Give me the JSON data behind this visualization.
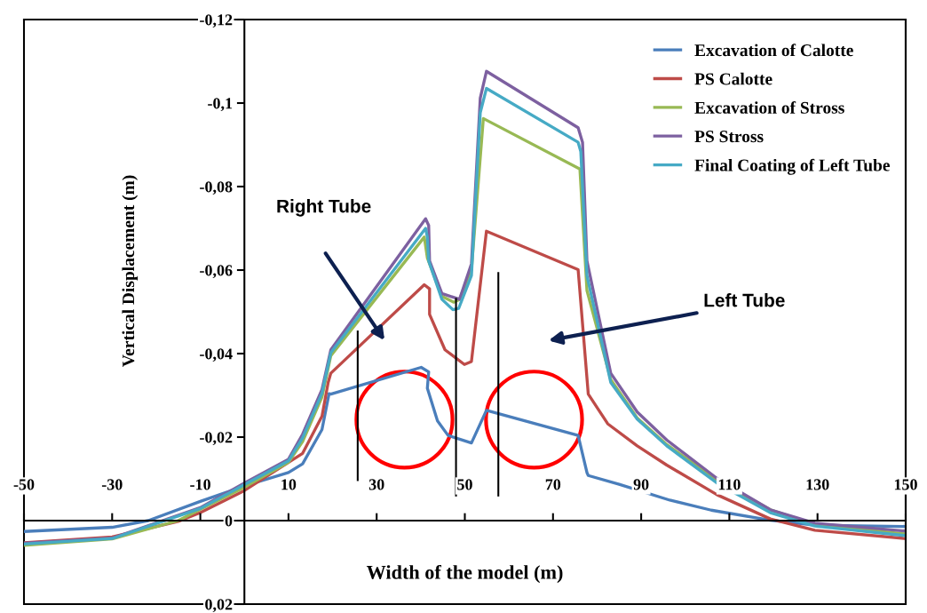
{
  "chart_data": {
    "type": "line",
    "xlabel": "Width of the model (m)",
    "ylabel": "Vertical Displacement (m)",
    "xlim": [
      -50,
      150
    ],
    "xticks": [
      -50,
      -30,
      -10,
      10,
      30,
      50,
      70,
      90,
      110,
      130,
      150
    ],
    "ylim": [
      0.02,
      -0.12
    ],
    "yticks": [
      {
        "value": -0.12,
        "label": "-0,12"
      },
      {
        "value": -0.1,
        "label": "-0,1"
      },
      {
        "value": -0.08,
        "label": "-0,08"
      },
      {
        "value": -0.06,
        "label": "-0,06"
      },
      {
        "value": -0.04,
        "label": "-0,04"
      },
      {
        "value": -0.02,
        "label": "-0,02"
      },
      {
        "value": 0,
        "label": "0"
      },
      {
        "value": 0.02,
        "label": "0,02"
      }
    ],
    "grid": false,
    "legend": "top right",
    "marker": "none",
    "line_style": "solid",
    "annotations": [
      "Right Tube",
      "Left Tube"
    ],
    "series": [
      {
        "name": "Excavation of Calotte",
        "color": "#4a7ebb",
        "x": [
          -50,
          -30,
          -21.8,
          -10,
          0,
          10,
          13.2,
          17.6,
          19.2,
          19.6,
          40.1,
          41.8,
          41.5,
          43.8,
          46.2,
          51.5,
          54.9,
          75.7,
          77.7,
          78.0,
          85.0,
          96.5,
          105.9,
          119.3,
          129.4,
          150
        ],
        "values": [
          0.0026,
          0.0016,
          0,
          -0.0046,
          -0.0083,
          -0.0115,
          -0.0136,
          -0.0218,
          -0.0304,
          -0.0303,
          -0.0367,
          -0.0356,
          -0.0317,
          -0.0239,
          -0.0204,
          -0.0186,
          -0.0264,
          -0.0204,
          -0.0115,
          -0.0108,
          -0.0087,
          -0.0049,
          -0.0025,
          -0.0001,
          0.0011,
          0.0014
        ]
      },
      {
        "name": "PS Calotte",
        "color": "#be4b48",
        "x": [
          -50,
          -30,
          -15,
          -10,
          0,
          13.2,
          17.6,
          19.0,
          19.6,
          40.8,
          42.0,
          42.0,
          45.5,
          49.9,
          51.5,
          54.9,
          75.7,
          78.0,
          82.4,
          89.1,
          95.8,
          107.2,
          119.3,
          129.4,
          150
        ],
        "values": [
          0.0053,
          0.0039,
          0.0002,
          -0.0019,
          -0.0072,
          -0.0161,
          -0.025,
          -0.0331,
          -0.0353,
          -0.0565,
          -0.0555,
          -0.0494,
          -0.0409,
          -0.0374,
          -0.0381,
          -0.0693,
          -0.0601,
          -0.0303,
          -0.0232,
          -0.0179,
          -0.0133,
          -0.0062,
          -0.0004,
          0.0023,
          0.0043
        ]
      },
      {
        "name": "Excavation of Stross",
        "color": "#98b954",
        "x": [
          -50,
          -30,
          -15,
          -10,
          0,
          10,
          13.2,
          17.6,
          19.6,
          40.8,
          41.5,
          44.8,
          47.5,
          48.8,
          51.5,
          54.2,
          76.1,
          77.7,
          83.1,
          89.1,
          95.8,
          107.2,
          119.3,
          129.4,
          150
        ],
        "values": [
          0.0059,
          0.0044,
          0,
          -0.0027,
          -0.008,
          -0.014,
          -0.0189,
          -0.0296,
          -0.0395,
          -0.0679,
          -0.0629,
          -0.0537,
          -0.0523,
          -0.053,
          -0.0601,
          -0.0963,
          -0.0842,
          -0.0551,
          -0.0338,
          -0.0246,
          -0.0182,
          -0.0097,
          -0.0026,
          0.0009,
          0.0032
        ]
      },
      {
        "name": "PS Stross",
        "color": "#7d60a0",
        "x": [
          -50,
          -30,
          -10,
          0,
          10,
          13.2,
          17.6,
          19.6,
          41.1,
          41.8,
          42.0,
          44.8,
          48.8,
          51.5,
          53.5,
          54.9,
          75.7,
          76.7,
          77.7,
          83.1,
          89.1,
          95.8,
          107.2,
          119.3,
          129.4,
          150
        ],
        "values": [
          0.0054,
          0.0042,
          -0.0031,
          -0.009,
          -0.0147,
          -0.0207,
          -0.0314,
          -0.0409,
          -0.0723,
          -0.0707,
          -0.0622,
          -0.0544,
          -0.053,
          -0.0615,
          -0.1012,
          -0.1076,
          -0.0941,
          -0.0906,
          -0.0622,
          -0.0353,
          -0.026,
          -0.0193,
          -0.0101,
          -0.0026,
          0.0006,
          0.0025
        ]
      },
      {
        "name": "Final Coating of Left Tube",
        "color": "#46aac5",
        "x": [
          -50,
          -30,
          -10,
          0,
          10,
          13.2,
          17.6,
          19.6,
          41.1,
          41.5,
          41.8,
          44.8,
          47.3,
          48.6,
          51.5,
          53.5,
          54.9,
          75.7,
          76.3,
          77.7,
          83.1,
          89.1,
          95.8,
          107.2,
          119.3,
          129.4,
          150
        ],
        "values": [
          0.0056,
          0.0043,
          -0.0029,
          -0.0086,
          -0.0143,
          -0.0198,
          -0.0305,
          -0.0402,
          -0.07,
          -0.0679,
          -0.0622,
          -0.053,
          -0.0505,
          -0.0508,
          -0.0587,
          -0.0977,
          -0.1035,
          -0.0906,
          -0.0884,
          -0.0587,
          -0.0331,
          -0.0243,
          -0.0179,
          -0.009,
          -0.0019,
          0.0013,
          0.0036
        ]
      }
    ]
  }
}
